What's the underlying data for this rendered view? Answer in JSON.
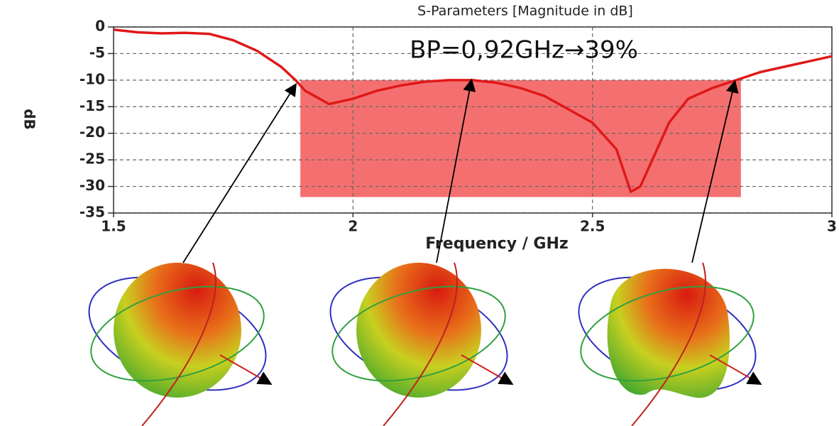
{
  "chart_data": {
    "type": "line",
    "title": "S-Parameters [Magnitude in dB]",
    "x_label": "Frequency / GHz",
    "y_label": "dB",
    "annotation": "BP=0,92GHz→39%",
    "x": [
      1.5,
      1.55,
      1.6,
      1.65,
      1.7,
      1.75,
      1.8,
      1.85,
      1.88,
      1.9,
      1.95,
      2.0,
      2.05,
      2.1,
      2.15,
      2.2,
      2.25,
      2.3,
      2.35,
      2.4,
      2.45,
      2.5,
      2.55,
      2.58,
      2.6,
      2.63,
      2.66,
      2.7,
      2.75,
      2.8,
      2.85,
      2.9,
      2.95,
      3.0
    ],
    "series": [
      {
        "color": "#e01818",
        "values": [
          -0.5,
          -1,
          -1.2,
          -1.1,
          -1.3,
          -2.5,
          -4.5,
          -7.5,
          -10,
          -12,
          -14.5,
          -13.5,
          -12,
          -11,
          -10.3,
          -10,
          -10,
          -10.5,
          -11.5,
          -13,
          -15.5,
          -18,
          -23,
          -31,
          -30,
          -24,
          -18,
          -13.5,
          -11.5,
          -10,
          -8.5,
          -7.5,
          -6.5,
          -5.5
        ]
      }
    ],
    "highlight": {
      "xlim": [
        1.89,
        2.81
      ],
      "ylim": [
        -32,
        -10
      ],
      "color": "#f47070"
    },
    "xlim": [
      1.5,
      3
    ],
    "ylim": [
      -35,
      0
    ],
    "xticks": [
      1.5,
      2,
      2.5,
      3
    ],
    "yticks": [
      0,
      -5,
      -10,
      -15,
      -20,
      -25,
      -30,
      -35
    ],
    "grid": true
  }
}
